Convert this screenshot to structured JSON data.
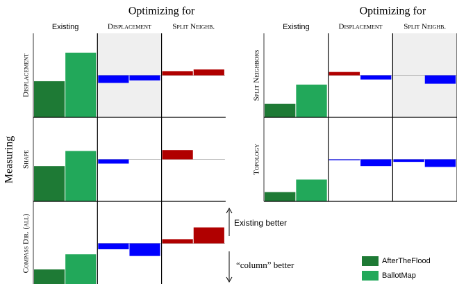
{
  "ylabel": "Measuring",
  "legend": [
    {
      "name": "AfterTheFlood",
      "color": "#1e7a35"
    },
    {
      "name": "BallotMap",
      "color": "#22a85a"
    }
  ],
  "annotations": {
    "up": "Existing better",
    "down": "“column” better"
  },
  "chart_data": [
    {
      "type": "bar",
      "title": "Optimizing for",
      "columns": [
        "Existing",
        "Displacement",
        "Split Neighb."
      ],
      "highlight": [
        0,
        1
      ],
      "ylim": [
        0,
        1
      ],
      "up_color": "#b00000",
      "down_color": "#0000ff",
      "rows": [
        {
          "name": "Displacement",
          "series": [
            [
              0.43,
              -0.09,
              0.05
            ],
            [
              0.77,
              -0.06,
              0.07
            ]
          ]
        },
        {
          "name": "Shape",
          "series": [
            [
              0.42,
              -0.05,
              0.11
            ],
            [
              0.6,
              0,
              0
            ]
          ]
        },
        {
          "name": "Compass Dir. (all)",
          "series": [
            [
              0.19,
              -0.07,
              0.05
            ],
            [
              0.37,
              -0.15,
              0.19
            ]
          ]
        }
      ]
    },
    {
      "type": "bar",
      "title": "Optimizing for",
      "columns": [
        "Existing",
        "Displacement",
        "Split Neighb."
      ],
      "highlight": [
        0,
        2
      ],
      "ylim": [
        0,
        1
      ],
      "up_color": "#b00000",
      "down_color": "#0000ff",
      "rows": [
        {
          "name": "Split Neighbors",
          "series": [
            [
              0.16,
              0.04,
              0
            ],
            [
              0.39,
              -0.05,
              -0.1
            ]
          ]
        },
        {
          "name": "Topology",
          "series": [
            [
              0.11,
              -0.01,
              -0.03
            ],
            [
              0.26,
              -0.08,
              -0.09
            ]
          ]
        }
      ]
    }
  ]
}
